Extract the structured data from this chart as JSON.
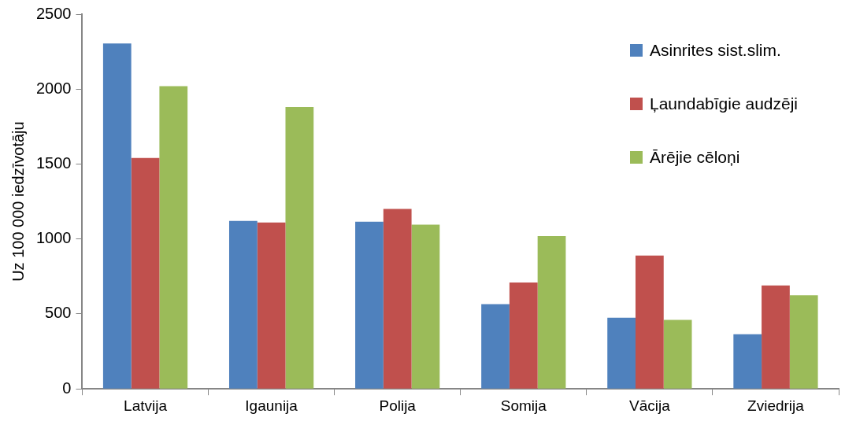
{
  "chart_data": {
    "type": "bar",
    "ylabel": "Uz 100 000 iedzīvotāju",
    "categories": [
      "Latvija",
      "Igaunija",
      "Polija",
      "Somija",
      "Vācija",
      "Zviedrija"
    ],
    "series": [
      {
        "name": "Asinrites sist.slim.",
        "color": "#4f81bd",
        "values": [
          2305,
          1120,
          1115,
          565,
          475,
          365
        ]
      },
      {
        "name": "Ļaundabīgie audzēji",
        "color": "#c0504d",
        "values": [
          1540,
          1110,
          1200,
          710,
          890,
          690
        ]
      },
      {
        "name": "Ārējie cēloņi",
        "color": "#9bbb59",
        "values": [
          2020,
          1880,
          1095,
          1020,
          460,
          625
        ]
      }
    ],
    "ylim": [
      0,
      2500
    ],
    "yticks": [
      0,
      500,
      1000,
      1500,
      2000,
      2500
    ],
    "grid": false,
    "legend": "top right"
  }
}
